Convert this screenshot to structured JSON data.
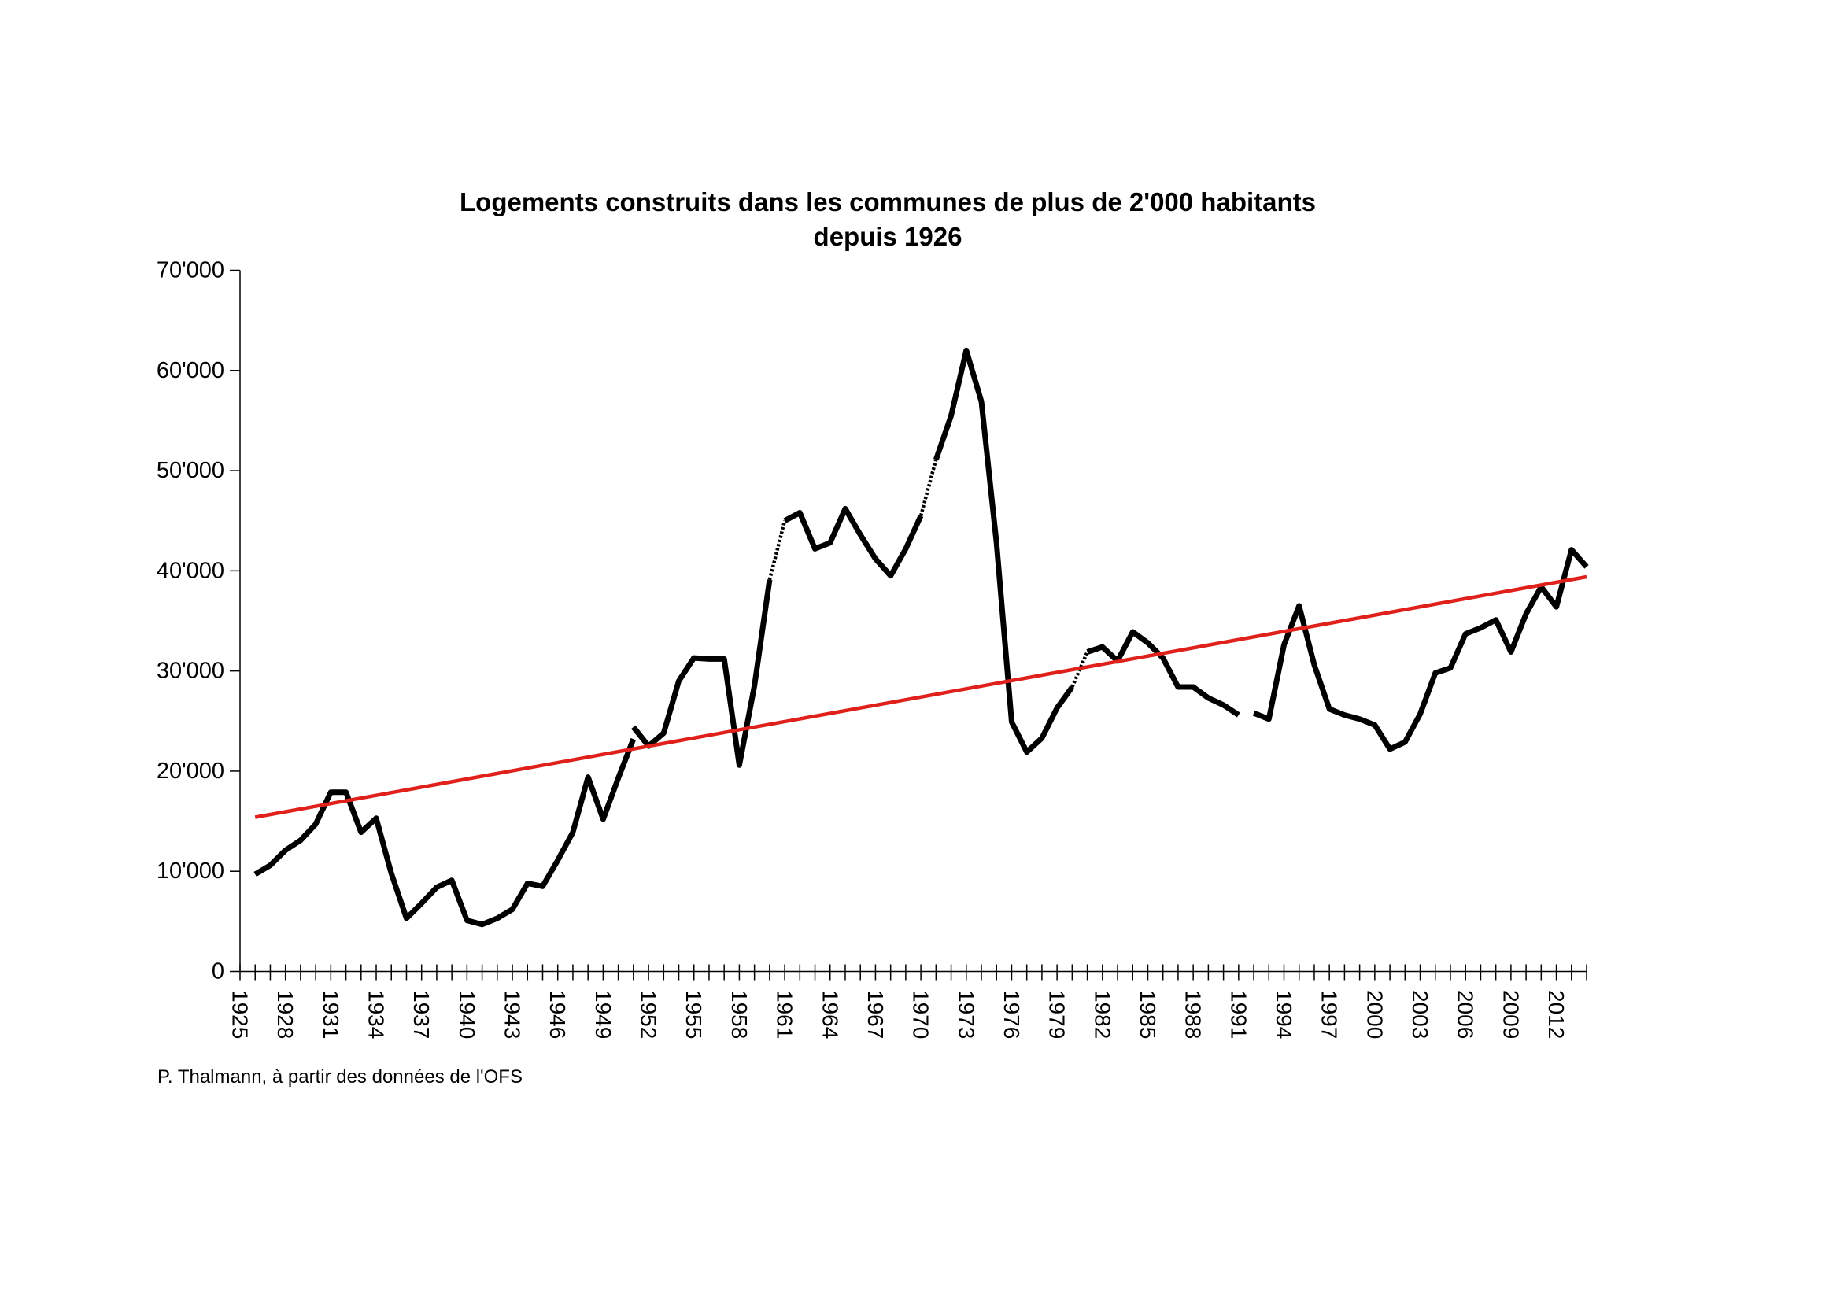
{
  "source_note": "P. Thalmann, à partir des données de l'OFS",
  "chart_data": {
    "type": "line",
    "title_lines": [
      "Logements construits dans les communes de plus de 2'000 habitants",
      "depuis 1926"
    ],
    "xlabel": "",
    "ylabel": "",
    "x_axis": {
      "range": [
        1925,
        2014
      ],
      "tick_labels": [
        "1925",
        "1928",
        "1931",
        "1934",
        "1937",
        "1940",
        "1943",
        "1946",
        "1949",
        "1952",
        "1955",
        "1958",
        "1961",
        "1964",
        "1967",
        "1970",
        "1973",
        "1976",
        "1979",
        "1982",
        "1985",
        "1988",
        "1991",
        "1994",
        "1997",
        "2000",
        "2003",
        "2006",
        "2009",
        "2012"
      ]
    },
    "y_axis": {
      "range": [
        0,
        70000
      ],
      "ticks": [
        0,
        10000,
        20000,
        30000,
        40000,
        50000,
        60000,
        70000
      ],
      "tick_labels": [
        "0",
        "10'000",
        "20'000",
        "30'000",
        "40'000",
        "50'000",
        "60'000",
        "70'000"
      ]
    },
    "grid": false,
    "legend": "none",
    "colors": {
      "series": "#000000",
      "trend": "#e0201b"
    },
    "segments": [
      {
        "style": "solid",
        "points": [
          [
            1926,
            9700
          ],
          [
            1927,
            10600
          ],
          [
            1928,
            12100
          ],
          [
            1929,
            13100
          ],
          [
            1930,
            14700
          ],
          [
            1931,
            17900
          ],
          [
            1932,
            17900
          ],
          [
            1933,
            13900
          ],
          [
            1934,
            15300
          ],
          [
            1935,
            9800
          ],
          [
            1936,
            5300
          ],
          [
            1937,
            6800
          ],
          [
            1938,
            8400
          ],
          [
            1939,
            9100
          ],
          [
            1940,
            5100
          ],
          [
            1941,
            4700
          ],
          [
            1942,
            5300
          ],
          [
            1943,
            6200
          ],
          [
            1944,
            8800
          ],
          [
            1945,
            8500
          ],
          [
            1946,
            11100
          ],
          [
            1947,
            13900
          ],
          [
            1948,
            19400
          ],
          [
            1949,
            15200
          ],
          [
            1950,
            19300
          ],
          [
            1951,
            23200
          ]
        ]
      },
      {
        "style": "solid",
        "points": [
          [
            1951,
            24400
          ],
          [
            1952,
            22500
          ],
          [
            1953,
            23800
          ],
          [
            1954,
            29000
          ],
          [
            1955,
            31300
          ],
          [
            1956,
            31200
          ],
          [
            1957,
            31200
          ],
          [
            1958,
            20600
          ],
          [
            1959,
            28500
          ],
          [
            1960,
            39100
          ]
        ]
      },
      {
        "style": "dotted",
        "points": [
          [
            1960,
            39100
          ],
          [
            1961,
            45000
          ]
        ]
      },
      {
        "style": "solid",
        "points": [
          [
            1961,
            45000
          ],
          [
            1962,
            45800
          ],
          [
            1963,
            42200
          ],
          [
            1964,
            42800
          ],
          [
            1965,
            46200
          ],
          [
            1966,
            43600
          ],
          [
            1967,
            41200
          ],
          [
            1968,
            39500
          ],
          [
            1969,
            42200
          ],
          [
            1970,
            45500
          ]
        ]
      },
      {
        "style": "dotted",
        "points": [
          [
            1970,
            45500
          ],
          [
            1971,
            51100
          ]
        ]
      },
      {
        "style": "solid",
        "points": [
          [
            1971,
            51100
          ],
          [
            1972,
            55500
          ],
          [
            1973,
            62000
          ],
          [
            1974,
            56900
          ],
          [
            1975,
            42800
          ],
          [
            1976,
            24900
          ],
          [
            1977,
            21900
          ],
          [
            1978,
            23300
          ],
          [
            1979,
            26300
          ],
          [
            1980,
            28400
          ]
        ]
      },
      {
        "style": "dotted",
        "points": [
          [
            1980,
            28400
          ],
          [
            1981,
            31900
          ]
        ]
      },
      {
        "style": "solid",
        "points": [
          [
            1981,
            31900
          ],
          [
            1982,
            32400
          ],
          [
            1983,
            31000
          ],
          [
            1984,
            33900
          ],
          [
            1985,
            32800
          ],
          [
            1986,
            31300
          ],
          [
            1987,
            28400
          ],
          [
            1988,
            28400
          ],
          [
            1989,
            27300
          ],
          [
            1990,
            26600
          ],
          [
            1991,
            25600
          ]
        ]
      },
      {
        "style": "solid",
        "points": [
          [
            1992,
            25800
          ],
          [
            1993,
            25200
          ],
          [
            1994,
            32600
          ],
          [
            1995,
            36500
          ],
          [
            1996,
            30600
          ],
          [
            1997,
            26200
          ],
          [
            1998,
            25600
          ],
          [
            1999,
            25200
          ],
          [
            2000,
            24600
          ],
          [
            2001,
            22200
          ],
          [
            2002,
            22900
          ],
          [
            2003,
            25700
          ],
          [
            2004,
            29800
          ],
          [
            2005,
            30300
          ],
          [
            2006,
            33700
          ],
          [
            2007,
            34300
          ],
          [
            2008,
            35100
          ],
          [
            2009,
            31900
          ],
          [
            2010,
            35700
          ],
          [
            2011,
            38400
          ],
          [
            2012,
            36400
          ],
          [
            2013,
            42100
          ],
          [
            2014,
            40400
          ]
        ]
      }
    ],
    "trend_line": {
      "points": [
        [
          1926,
          15400
        ],
        [
          2014,
          39400
        ]
      ]
    }
  }
}
